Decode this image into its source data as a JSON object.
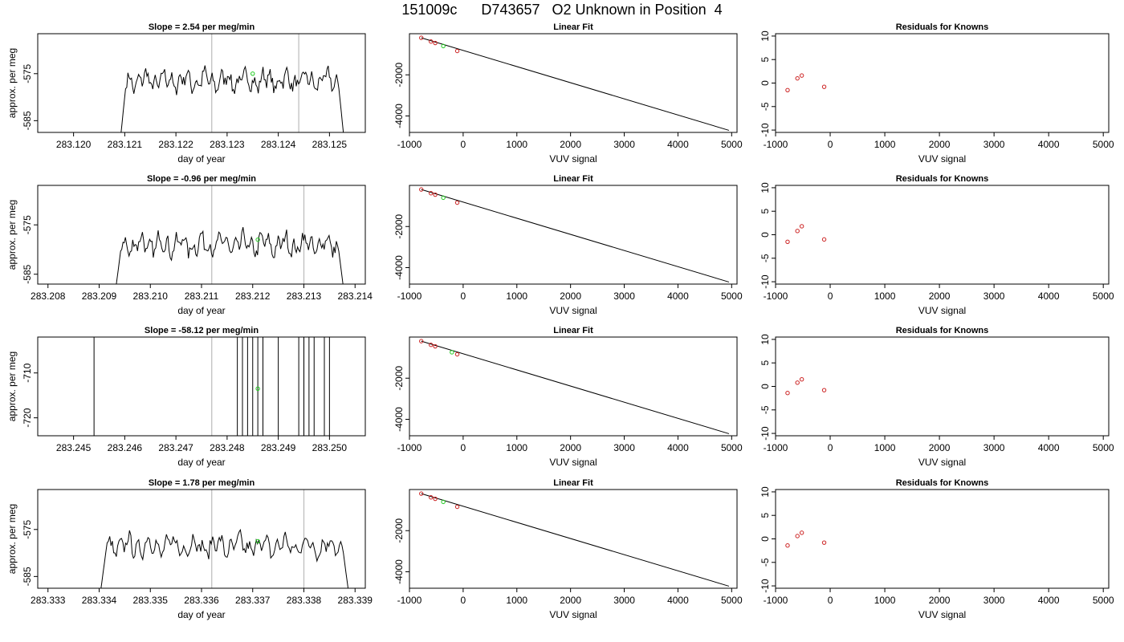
{
  "figure_title": "151009c      D743657   O2 Unknown in Position  4",
  "colors": {
    "trace": "#000000",
    "known_points": "#cc2222",
    "unknown_point": "#22cc22",
    "vertical_lines": "#bbbbbb"
  },
  "chart_data": [
    {
      "type": "line",
      "panel": "time-series",
      "row": 1,
      "title": "Slope =  2.54  per meg/min",
      "xlabel": "day of year",
      "ylabel": "approx. per meg",
      "xlim": [
        283.1193,
        283.1257
      ],
      "ylim": [
        -587.5,
        -566.5
      ],
      "xticks": [
        "283.120",
        "283.121",
        "283.122",
        "283.123",
        "283.124",
        "283.125"
      ],
      "yticks": [
        "-575",
        "-585"
      ],
      "vlines": [
        283.1227,
        283.1244
      ],
      "trace_start": 283.1209,
      "trace_end": 283.1253,
      "trace_level": -576.5,
      "unknown_point": {
        "x": 283.1235,
        "y": -575.0
      }
    },
    {
      "type": "scatter",
      "panel": "linear-fit",
      "row": 1,
      "title": "Linear Fit",
      "xlabel": "VUV signal",
      "ylabel": "",
      "xlim": [
        -1000,
        5100
      ],
      "ylim": [
        -4800,
        0
      ],
      "xticks": [
        "-1000",
        "0",
        "1000",
        "2000",
        "3000",
        "4000",
        "5000"
      ],
      "yticks": [
        "-2000",
        "-4000"
      ],
      "known_points": [
        [
          -780,
          -200
        ],
        [
          -600,
          -380
        ],
        [
          -520,
          -450
        ],
        [
          -110,
          -840
        ]
      ],
      "unknown_point": [
        -370,
        -600
      ],
      "fit_line": [
        [
          -780,
          -200
        ],
        [
          4950,
          -4700
        ]
      ]
    },
    {
      "type": "scatter",
      "panel": "residuals",
      "row": 1,
      "title": "Residuals for Knowns",
      "xlabel": "VUV signal",
      "ylabel": "",
      "xlim": [
        -1000,
        5100
      ],
      "ylim": [
        -10.5,
        10.5
      ],
      "xticks": [
        "-1000",
        "0",
        "1000",
        "2000",
        "3000",
        "4000",
        "5000"
      ],
      "yticks": [
        "10",
        "5",
        "0",
        "-5",
        "-10"
      ],
      "residuals": [
        [
          -780,
          -1.5
        ],
        [
          -600,
          1.0
        ],
        [
          -520,
          1.6
        ],
        [
          -110,
          -0.8
        ]
      ]
    },
    {
      "type": "line",
      "panel": "time-series",
      "row": 2,
      "title": "Slope =  -0.96  per meg/min",
      "xlabel": "day of year",
      "ylabel": "approx. per meg",
      "xlim": [
        283.2078,
        283.2142
      ],
      "ylim": [
        -587.0,
        -567.0
      ],
      "xticks": [
        "283.208",
        "283.209",
        "283.210",
        "283.211",
        "283.212",
        "283.213",
        "283.214"
      ],
      "yticks": [
        "-575",
        "-585"
      ],
      "vlines": [
        283.2112,
        283.213
      ],
      "trace_start": 283.2093,
      "trace_end": 283.2138,
      "trace_level": -579.0,
      "unknown_point": {
        "x": 283.2121,
        "y": -578.0
      }
    },
    {
      "type": "scatter",
      "panel": "linear-fit",
      "row": 2,
      "title": "Linear Fit",
      "xlabel": "VUV signal",
      "ylabel": "",
      "xlim": [
        -1000,
        5100
      ],
      "ylim": [
        -4800,
        0
      ],
      "xticks": [
        "-1000",
        "0",
        "1000",
        "2000",
        "3000",
        "4000",
        "5000"
      ],
      "yticks": [
        "-2000",
        "-4000"
      ],
      "known_points": [
        [
          -780,
          -200
        ],
        [
          -600,
          -380
        ],
        [
          -520,
          -450
        ],
        [
          -110,
          -840
        ]
      ],
      "unknown_point": [
        -370,
        -600
      ],
      "fit_line": [
        [
          -780,
          -200
        ],
        [
          4950,
          -4700
        ]
      ]
    },
    {
      "type": "scatter",
      "panel": "residuals",
      "row": 2,
      "title": "Residuals for Knowns",
      "xlabel": "VUV signal",
      "ylabel": "",
      "xlim": [
        -1000,
        5100
      ],
      "ylim": [
        -10.5,
        10.5
      ],
      "xticks": [
        "-1000",
        "0",
        "1000",
        "2000",
        "3000",
        "4000",
        "5000"
      ],
      "yticks": [
        "10",
        "5",
        "0",
        "-5",
        "-10"
      ],
      "residuals": [
        [
          -780,
          -1.5
        ],
        [
          -600,
          0.8
        ],
        [
          -520,
          1.8
        ],
        [
          -110,
          -1.0
        ]
      ]
    },
    {
      "type": "line",
      "panel": "time-series",
      "row": 3,
      "title": "Slope =  -58.12  per meg/min",
      "xlabel": "day of year",
      "ylabel": "approx. per meg",
      "xlim": [
        283.2443,
        283.2507
      ],
      "ylim": [
        -724.0,
        -702.0
      ],
      "xticks": [
        "283.245",
        "283.246",
        "283.247",
        "283.248",
        "283.249",
        "283.250"
      ],
      "yticks": [
        "-710",
        "-720"
      ],
      "vlines": [
        283.2477,
        283.2495
      ],
      "spike_x": [
        283.2454,
        283.2482,
        283.2483,
        283.2484,
        283.2485,
        283.2486,
        283.2487,
        283.249,
        283.2494,
        283.2495,
        283.2496,
        283.2497,
        283.2499,
        283.25
      ],
      "unknown_point": {
        "x": 283.2486,
        "y": -713.5
      }
    },
    {
      "type": "scatter",
      "panel": "linear-fit",
      "row": 3,
      "title": "Linear Fit",
      "xlabel": "VUV signal",
      "ylabel": "",
      "xlim": [
        -1000,
        5100
      ],
      "ylim": [
        -4800,
        0
      ],
      "xticks": [
        "-1000",
        "0",
        "1000",
        "2000",
        "3000",
        "4000",
        "5000"
      ],
      "yticks": [
        "-2000",
        "-4000"
      ],
      "known_points": [
        [
          -780,
          -200
        ],
        [
          -600,
          -380
        ],
        [
          -520,
          -450
        ],
        [
          -110,
          -840
        ]
      ],
      "unknown_point": [
        -210,
        -740
      ],
      "fit_line": [
        [
          -780,
          -200
        ],
        [
          4950,
          -4700
        ]
      ]
    },
    {
      "type": "scatter",
      "panel": "residuals",
      "row": 3,
      "title": "Residuals for Knowns",
      "xlabel": "VUV signal",
      "ylabel": "",
      "xlim": [
        -1000,
        5100
      ],
      "ylim": [
        -10.5,
        10.5
      ],
      "xticks": [
        "-1000",
        "0",
        "1000",
        "2000",
        "3000",
        "4000",
        "5000"
      ],
      "yticks": [
        "10",
        "5",
        "0",
        "-5",
        "-10"
      ],
      "residuals": [
        [
          -780,
          -1.4
        ],
        [
          -600,
          0.8
        ],
        [
          -520,
          1.5
        ],
        [
          -110,
          -0.8
        ]
      ]
    },
    {
      "type": "line",
      "panel": "time-series",
      "row": 4,
      "title": "Slope =  1.78  per meg/min",
      "xlabel": "day of year",
      "ylabel": "approx. per meg",
      "xlim": [
        283.3328,
        283.3392
      ],
      "ylim": [
        -587.5,
        -566.5
      ],
      "xticks": [
        "283.333",
        "283.334",
        "283.335",
        "283.336",
        "283.337",
        "283.338",
        "283.339"
      ],
      "yticks": [
        "-575",
        "-585"
      ],
      "vlines": [
        283.3362,
        283.338
      ],
      "trace_start": 283.334,
      "trace_end": 283.3389,
      "trace_level": -578.5,
      "unknown_point": {
        "x": 283.3371,
        "y": -577.5
      }
    },
    {
      "type": "scatter",
      "panel": "linear-fit",
      "row": 4,
      "title": "Linear Fit",
      "xlabel": "VUV signal",
      "ylabel": "",
      "xlim": [
        -1000,
        5100
      ],
      "ylim": [
        -4800,
        0
      ],
      "xticks": [
        "-1000",
        "0",
        "1000",
        "2000",
        "3000",
        "4000",
        "5000"
      ],
      "yticks": [
        "-2000",
        "-4000"
      ],
      "known_points": [
        [
          -780,
          -200
        ],
        [
          -600,
          -380
        ],
        [
          -520,
          -450
        ],
        [
          -110,
          -840
        ]
      ],
      "unknown_point": [
        -370,
        -600
      ],
      "fit_line": [
        [
          -780,
          -200
        ],
        [
          4950,
          -4700
        ]
      ]
    },
    {
      "type": "scatter",
      "panel": "residuals",
      "row": 4,
      "title": "Residuals for Knowns",
      "xlabel": "VUV signal",
      "ylabel": "",
      "xlim": [
        -1000,
        5100
      ],
      "ylim": [
        -10.5,
        10.5
      ],
      "xticks": [
        "-1000",
        "0",
        "1000",
        "2000",
        "3000",
        "4000",
        "5000"
      ],
      "yticks": [
        "10",
        "5",
        "0",
        "-5",
        "-10"
      ],
      "residuals": [
        [
          -780,
          -1.4
        ],
        [
          -600,
          0.6
        ],
        [
          -520,
          1.3
        ],
        [
          -110,
          -0.8
        ]
      ]
    }
  ]
}
